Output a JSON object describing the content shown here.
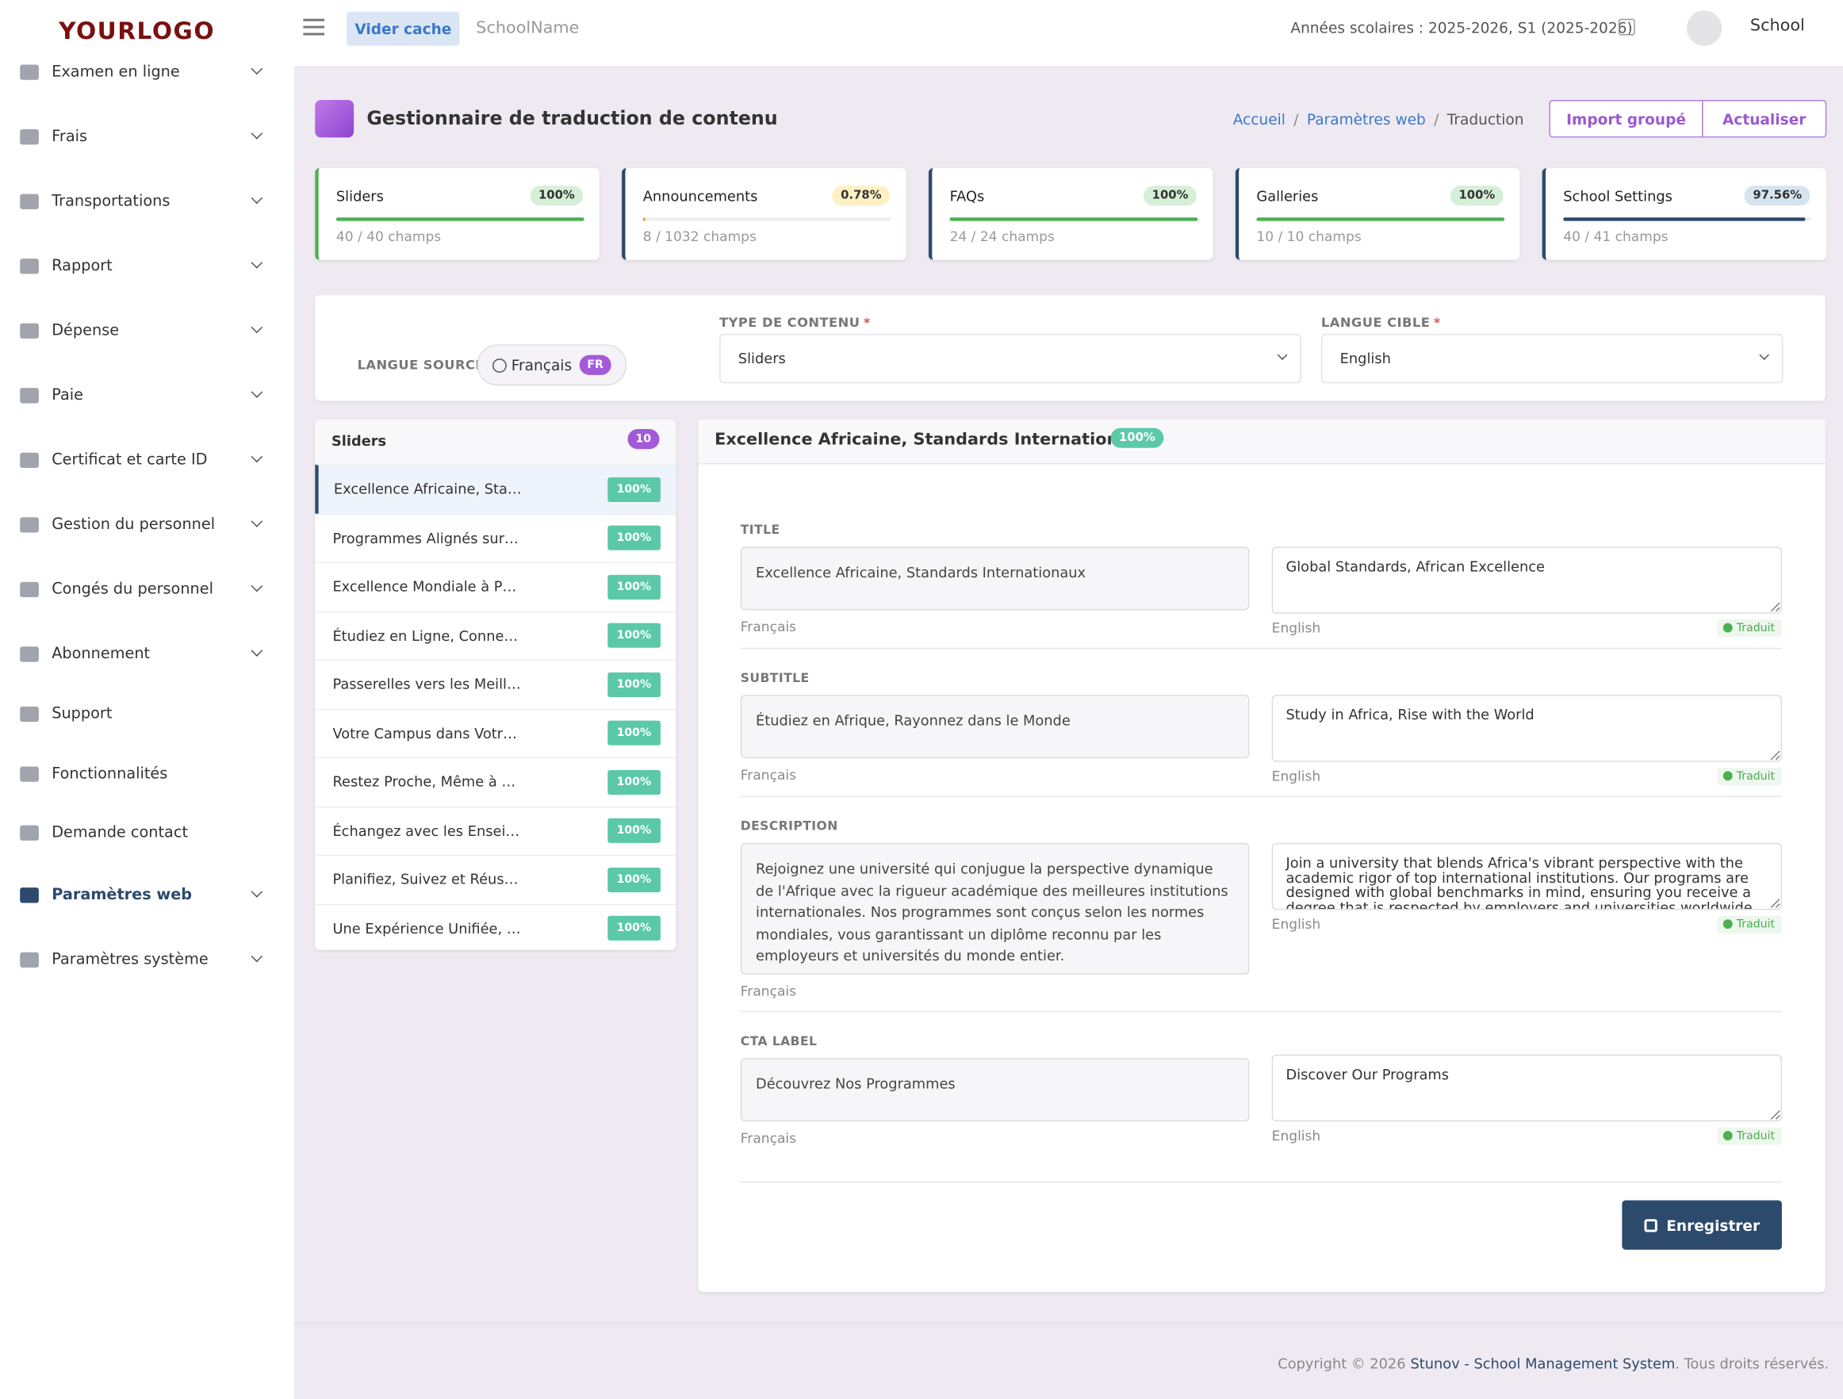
{
  "header": {
    "logo": "YOURLOGO",
    "clear_cache": "Vider cache",
    "school_name": "SchoolName",
    "academic_year": "Années scolaires : 2025-2026, S1 (2025-2026)",
    "user": "School"
  },
  "sidebar": [
    {
      "label": "Examen en ligne",
      "expandable": true
    },
    {
      "label": "Frais",
      "expandable": true
    },
    {
      "label": "Transportations",
      "expandable": true
    },
    {
      "label": "Rapport",
      "expandable": true
    },
    {
      "label": "Dépense",
      "expandable": true
    },
    {
      "label": "Paie",
      "expandable": true
    },
    {
      "label": "Certificat et carte ID",
      "expandable": true
    },
    {
      "label": "Gestion du personnel",
      "expandable": true
    },
    {
      "label": "Congés du personnel",
      "expandable": true
    },
    {
      "label": "Abonnement",
      "expandable": true
    },
    {
      "label": "Support",
      "expandable": false
    },
    {
      "label": "Fonctionnalités",
      "expandable": false
    },
    {
      "label": "Demande contact",
      "expandable": false
    },
    {
      "label": "Paramètres web",
      "expandable": true,
      "active": true
    },
    {
      "label": "Paramètres système",
      "expandable": true
    }
  ],
  "page": {
    "title": "Gestionnaire de traduction de contenu",
    "breadcrumb": [
      "Accueil",
      "Paramètres web",
      "Traduction"
    ],
    "separator": "/",
    "actions": [
      "Import groupé",
      "Actualiser"
    ]
  },
  "stats": [
    {
      "name": "Sliders",
      "progress": {
        "value": 100,
        "label": "100%"
      },
      "fields": "40 / 40 champs",
      "color": "#4caf50"
    },
    {
      "name": "Announcements",
      "progress": {
        "value": 0.78,
        "label": "0.78%"
      },
      "fields": "8 / 1032 champs",
      "color": "#f0a030"
    },
    {
      "name": "FAQs",
      "progress": {
        "value": 100,
        "label": "100%"
      },
      "fields": "24 / 24 champs",
      "color": "#4caf50"
    },
    {
      "name": "Galleries",
      "progress": {
        "value": 100,
        "label": "100%"
      },
      "fields": "10 / 10 champs",
      "color": "#4caf50"
    },
    {
      "name": "School Settings",
      "progress": {
        "value": 97.56,
        "label": "97.56%"
      },
      "fields": "40 / 41 champs",
      "color": "#2c4a6b"
    }
  ],
  "filters": {
    "source_label": "LANGUE SOURCE",
    "source_language": "Français",
    "source_code": "FR",
    "content_type_label": "TYPE DE CONTENU",
    "required_mark": "*",
    "content_type": "Sliders",
    "target_label": "LANGUE CIBLE",
    "target_language": "English"
  },
  "list": {
    "title": "Sliders",
    "count": 10,
    "items": [
      {
        "label": "Excellence Africaine, Sta…",
        "progress": "100%"
      },
      {
        "label": "Programmes Alignés sur…",
        "progress": "100%"
      },
      {
        "label": "Excellence Mondiale à P…",
        "progress": "100%"
      },
      {
        "label": "Étudiez en Ligne, Conne…",
        "progress": "100%"
      },
      {
        "label": "Passerelles vers les Meill…",
        "progress": "100%"
      },
      {
        "label": "Votre Campus dans Votr…",
        "progress": "100%"
      },
      {
        "label": "Restez Proche, Même à …",
        "progress": "100%"
      },
      {
        "label": "Échangez avec les Ensei…",
        "progress": "100%"
      },
      {
        "label": "Planifiez, Suivez et Réus…",
        "progress": "100%"
      },
      {
        "label": "Une Expérience Unifiée, …",
        "progress": "100%"
      }
    ]
  },
  "editor": {
    "title": "Excellence Africaine, Standards Internationaux",
    "progress": "100%",
    "fields": [
      {
        "label": "TITLE",
        "source": "Excellence Africaine, Standards Internationaux",
        "source_language": "Français",
        "target": "Global Standards, African Excellence",
        "target_language": "English",
        "status": "Traduit"
      },
      {
        "label": "SUBTITLE",
        "source": "Étudiez en Afrique, Rayonnez dans le Monde",
        "source_language": "Français",
        "target": "Study in Africa, Rise with the World",
        "target_language": "English",
        "status": "Traduit"
      },
      {
        "label": "DESCRIPTION",
        "source": "Rejoignez une université qui conjugue la perspective dynamique de l'Afrique avec la rigueur académique des meilleures institutions internationales. Nos programmes sont conçus selon les normes mondiales, vous garantissant un diplôme reconnu par les employeurs et universités du monde entier.",
        "source_language": "Français",
        "target": "Join a university that blends Africa's vibrant perspective with the academic rigor of top international institutions. Our programs are designed with global benchmarks in mind, ensuring you receive a degree that is respected by employers and universities worldwide.",
        "target_language": "English",
        "status": "Traduit"
      },
      {
        "label": "CTA LABEL",
        "source": "Découvrez Nos Programmes",
        "source_language": "Français",
        "target": "Discover Our Programs",
        "target_language": "English",
        "status": "Traduit"
      }
    ],
    "save": "Enregistrer"
  },
  "footer": {
    "copyright": "Copyright © 2026",
    "brand": "Stunov - School Management System",
    "rights": ". Tous droits réservés."
  }
}
